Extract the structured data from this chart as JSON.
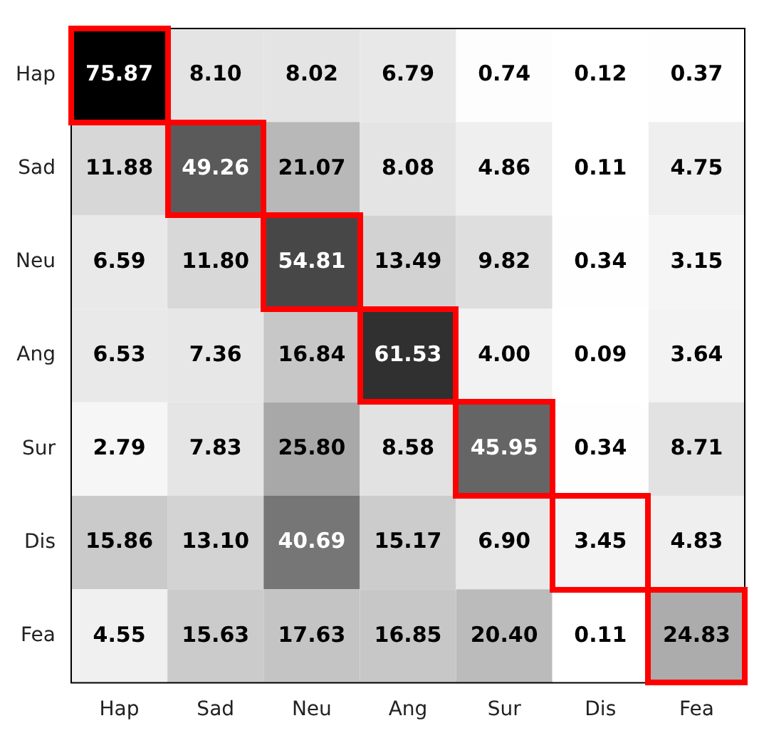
{
  "chart_data": {
    "type": "heatmap",
    "categories": [
      "Hap",
      "Sad",
      "Neu",
      "Ang",
      "Sur",
      "Dis",
      "Fea"
    ],
    "y_categories": [
      "Hap",
      "Sad",
      "Neu",
      "Ang",
      "Sur",
      "Dis",
      "Fea"
    ],
    "cells": [
      [
        75.87,
        8.1,
        8.02,
        6.79,
        0.74,
        0.12,
        0.37
      ],
      [
        11.88,
        49.26,
        21.07,
        8.08,
        4.86,
        0.11,
        4.75
      ],
      [
        6.59,
        11.8,
        54.81,
        13.49,
        9.82,
        0.34,
        3.15
      ],
      [
        6.53,
        7.36,
        16.84,
        61.53,
        4.0,
        0.09,
        3.64
      ],
      [
        2.79,
        7.83,
        25.8,
        8.58,
        45.95,
        0.34,
        8.71
      ],
      [
        15.86,
        13.1,
        40.69,
        15.17,
        6.9,
        3.45,
        4.83
      ],
      [
        4.55,
        15.63,
        17.63,
        16.85,
        20.4,
        0.11,
        24.83
      ]
    ],
    "cell_labels": [
      [
        "75.87",
        "8.10",
        "8.02",
        "6.79",
        "0.74",
        "0.12",
        "0.37"
      ],
      [
        "11.88",
        "49.26",
        "21.07",
        "8.08",
        "4.86",
        "0.11",
        "4.75"
      ],
      [
        "6.59",
        "11.80",
        "54.81",
        "13.49",
        "9.82",
        "0.34",
        "3.15"
      ],
      [
        "6.53",
        "7.36",
        "16.84",
        "61.53",
        "4.00",
        "0.09",
        "3.64"
      ],
      [
        "2.79",
        "7.83",
        "25.80",
        "8.58",
        "45.95",
        "0.34",
        "8.71"
      ],
      [
        "15.86",
        "13.10",
        "40.69",
        "15.17",
        "6.90",
        "3.45",
        "4.83"
      ],
      [
        "4.55",
        "15.63",
        "17.63",
        "16.85",
        "20.40",
        "0.11",
        "24.83"
      ]
    ]
  }
}
